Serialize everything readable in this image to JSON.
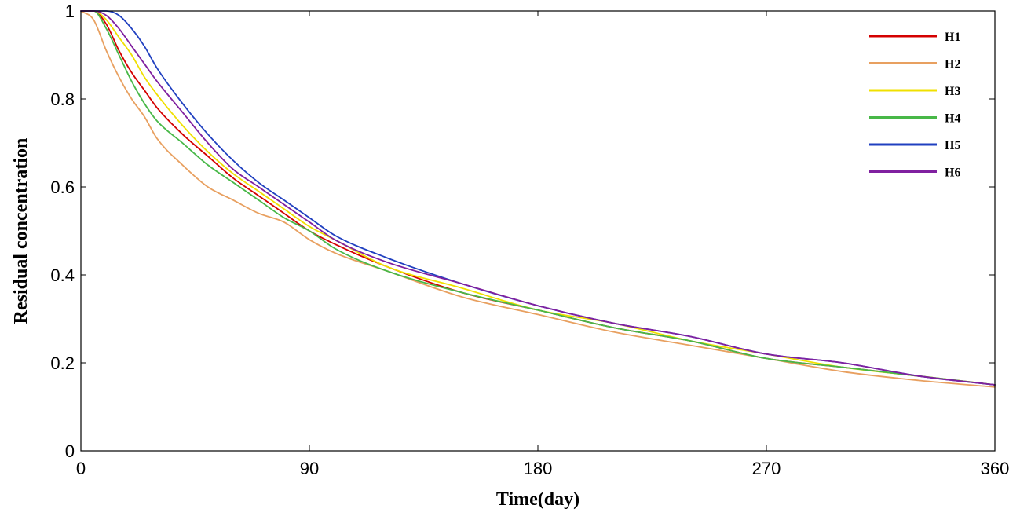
{
  "chart_data": {
    "type": "line",
    "title": "",
    "xlabel": "Time(day)",
    "ylabel": "Residual concentration",
    "xlim": [
      0,
      360
    ],
    "ylim": [
      0,
      1
    ],
    "x_ticks": [
      0,
      90,
      180,
      270,
      360
    ],
    "x_tick_labels": [
      "0",
      "90",
      "180",
      "270",
      "360"
    ],
    "y_ticks": [
      0,
      0.2,
      0.4,
      0.6,
      0.8,
      1
    ],
    "y_tick_labels": [
      "0",
      "0.2",
      "0.4",
      "0.6",
      "0.8",
      "1"
    ],
    "grid": false,
    "legend_position": "top-right",
    "x": [
      0,
      5,
      10,
      15,
      20,
      25,
      30,
      40,
      50,
      60,
      70,
      80,
      90,
      100,
      120,
      150,
      180,
      210,
      240,
      270,
      300,
      330,
      360
    ],
    "series": [
      {
        "name": "H1",
        "color": "#d40000",
        "values": [
          1.0,
          1.0,
          0.97,
          0.91,
          0.86,
          0.82,
          0.78,
          0.72,
          0.67,
          0.62,
          0.58,
          0.54,
          0.5,
          0.47,
          0.42,
          0.36,
          0.32,
          0.28,
          0.25,
          0.21,
          0.19,
          0.17,
          0.15
        ]
      },
      {
        "name": "H2",
        "color": "#e8a060",
        "values": [
          1.0,
          0.98,
          0.91,
          0.85,
          0.8,
          0.76,
          0.71,
          0.65,
          0.6,
          0.57,
          0.54,
          0.52,
          0.48,
          0.45,
          0.41,
          0.35,
          0.31,
          0.27,
          0.24,
          0.21,
          0.18,
          0.16,
          0.145
        ]
      },
      {
        "name": "H3",
        "color": "#f0e000",
        "values": [
          1.0,
          1.0,
          0.98,
          0.94,
          0.9,
          0.85,
          0.81,
          0.74,
          0.68,
          0.63,
          0.59,
          0.55,
          0.51,
          0.48,
          0.42,
          0.37,
          0.32,
          0.29,
          0.25,
          0.22,
          0.19,
          0.17,
          0.15
        ]
      },
      {
        "name": "H4",
        "color": "#48b848",
        "values": [
          1.0,
          1.0,
          0.96,
          0.9,
          0.84,
          0.79,
          0.75,
          0.7,
          0.65,
          0.61,
          0.57,
          0.53,
          0.5,
          0.46,
          0.41,
          0.36,
          0.32,
          0.28,
          0.25,
          0.21,
          0.19,
          0.17,
          0.15
        ]
      },
      {
        "name": "H5",
        "color": "#2040c0",
        "values": [
          1.0,
          1.0,
          1.0,
          0.99,
          0.96,
          0.92,
          0.87,
          0.79,
          0.72,
          0.66,
          0.61,
          0.57,
          0.53,
          0.49,
          0.44,
          0.38,
          0.33,
          0.29,
          0.26,
          0.22,
          0.2,
          0.17,
          0.15
        ]
      },
      {
        "name": "H6",
        "color": "#8020a0",
        "values": [
          1.0,
          1.0,
          0.99,
          0.96,
          0.92,
          0.88,
          0.84,
          0.77,
          0.7,
          0.64,
          0.6,
          0.56,
          0.52,
          0.48,
          0.43,
          0.38,
          0.33,
          0.29,
          0.26,
          0.22,
          0.2,
          0.17,
          0.15
        ]
      }
    ]
  }
}
